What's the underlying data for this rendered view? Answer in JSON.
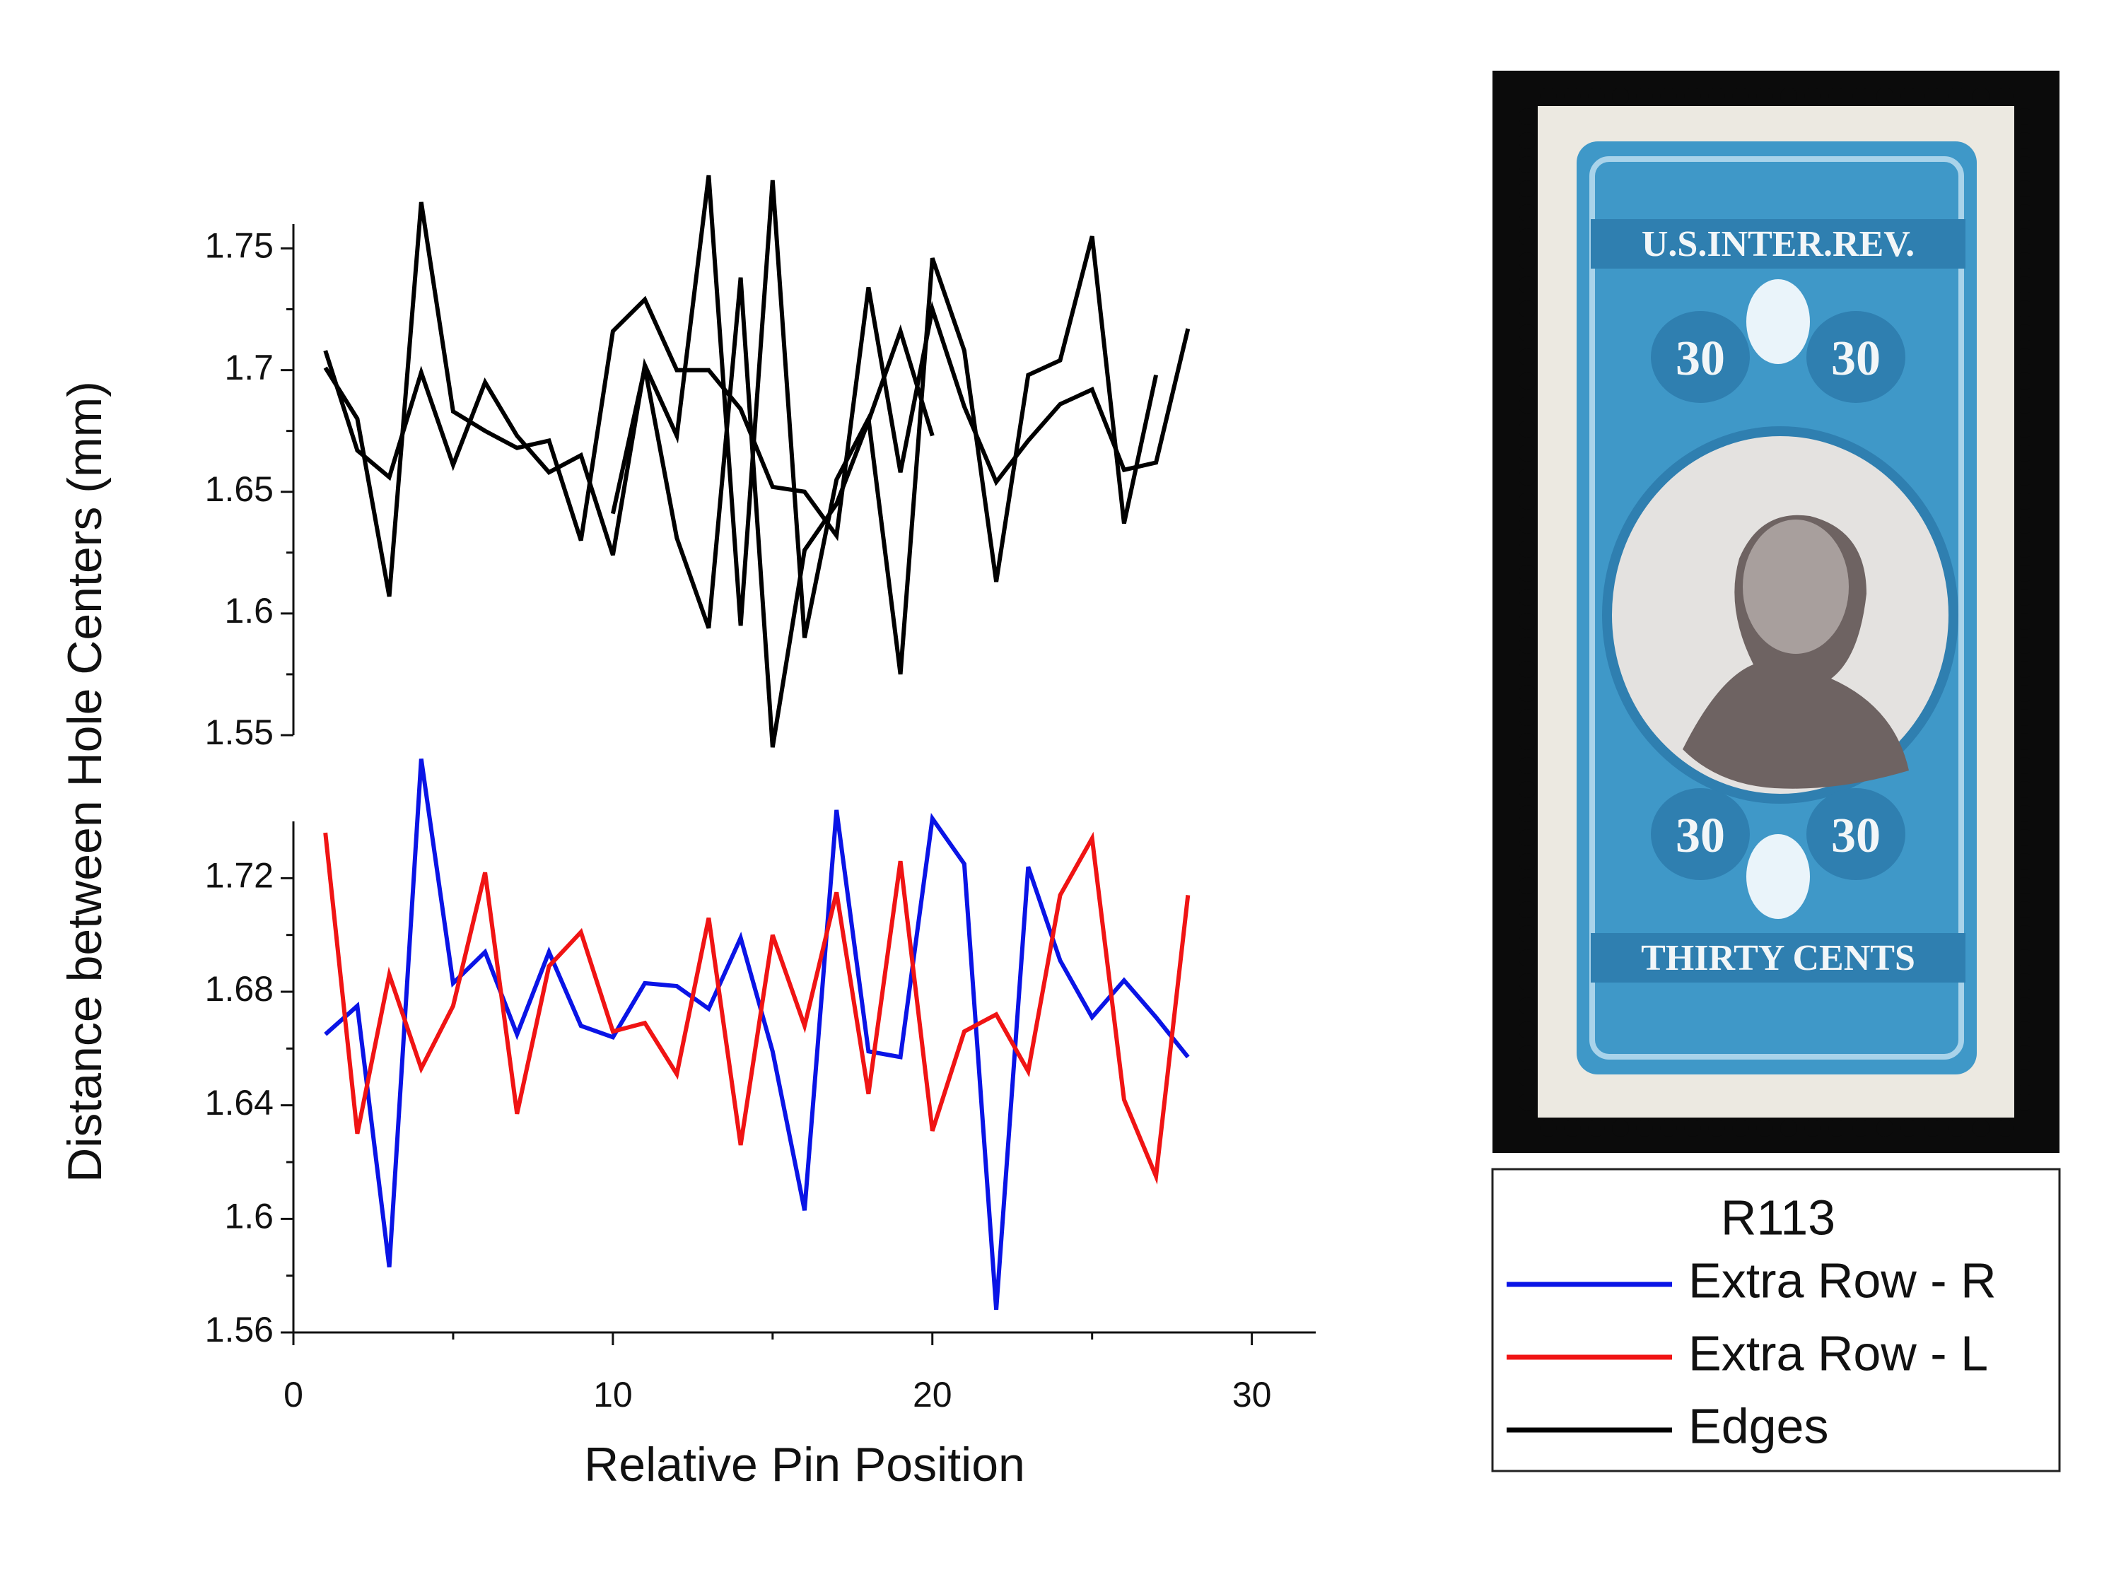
{
  "chart_data": [
    {
      "type": "line",
      "ylabel": "Distance between Hole Centers (mm)",
      "x": [
        1,
        2,
        3,
        4,
        5,
        6,
        7,
        8,
        9,
        10,
        11,
        12,
        13,
        14,
        15,
        16,
        17,
        18,
        19,
        20,
        21,
        22,
        23,
        24,
        25,
        26,
        27,
        28
      ],
      "xlim": [
        0,
        32
      ],
      "ylim": [
        1.55,
        1.76
      ],
      "yticks": [
        1.55,
        1.6,
        1.65,
        1.7,
        1.75
      ],
      "minor_yticks": [
        1.575,
        1.625,
        1.675,
        1.725
      ],
      "series": [
        {
          "name": "Edges",
          "color": "#000000",
          "values": [
            1.701,
            1.68,
            1.607,
            1.769,
            1.683,
            1.675,
            1.668,
            1.671,
            1.63,
            1.716,
            1.729,
            1.7,
            1.7,
            1.684,
            1.652,
            1.65,
            1.632,
            1.734,
            1.658,
            1.725,
            1.685,
            1.654,
            1.671,
            1.686,
            1.692,
            1.659,
            1.662,
            1.717
          ]
        },
        {
          "color": "#000000",
          "values": [
            1.708,
            1.667,
            1.656,
            1.699,
            1.661,
            1.695,
            1.673,
            1.658,
            1.665,
            1.624,
            1.702,
            1.673,
            1.78,
            1.595,
            1.778,
            1.59,
            1.655,
            1.68,
            1.575,
            1.746,
            1.708,
            1.613,
            1.698,
            1.704,
            1.755,
            1.637,
            1.698,
            null
          ]
        },
        {
          "color": "#000000",
          "values": [
            null,
            null,
            null,
            null,
            null,
            null,
            null,
            null,
            null,
            1.641,
            1.701,
            1.631,
            1.594,
            1.738,
            1.545,
            1.626,
            1.645,
            1.679,
            1.716,
            1.673,
            null,
            null,
            null,
            null,
            null,
            null,
            null,
            null
          ]
        }
      ]
    },
    {
      "type": "line",
      "xlabel": "Relative Pin Position",
      "x": [
        1,
        2,
        3,
        4,
        5,
        6,
        7,
        8,
        9,
        10,
        11,
        12,
        13,
        14,
        15,
        16,
        17,
        18,
        19,
        20,
        21,
        22,
        23,
        24,
        25,
        26,
        27,
        28
      ],
      "xlim": [
        0,
        32
      ],
      "xticks": [
        0,
        10,
        20,
        30
      ],
      "minor_xticks": [
        5,
        15,
        25
      ],
      "ylim": [
        1.56,
        1.74
      ],
      "yticks": [
        1.56,
        1.6,
        1.64,
        1.68,
        1.72
      ],
      "minor_yticks": [
        1.58,
        1.62,
        1.66,
        1.7
      ],
      "legend_title": "R113",
      "series": [
        {
          "name": "Extra Row - R",
          "color": "#0a14e6",
          "values": [
            1.665,
            1.675,
            1.583,
            1.762,
            1.683,
            1.694,
            1.665,
            1.694,
            1.668,
            1.664,
            1.683,
            1.682,
            1.674,
            1.699,
            1.659,
            1.603,
            1.744,
            1.659,
            1.657,
            1.741,
            1.725,
            1.568,
            1.724,
            1.691,
            1.671,
            1.684,
            1.671,
            1.657
          ]
        },
        {
          "name": "Extra Row - L",
          "color": "#f01414",
          "values": [
            1.736,
            1.63,
            1.686,
            1.653,
            1.675,
            1.722,
            1.637,
            1.689,
            1.701,
            1.666,
            1.669,
            1.651,
            1.706,
            1.626,
            1.7,
            1.668,
            1.715,
            1.644,
            1.726,
            1.631,
            1.666,
            1.672,
            1.652,
            1.714,
            1.734,
            1.642,
            1.615,
            1.714
          ]
        }
      ]
    }
  ],
  "stamp": {
    "top_text": "U.S.INTER.REV.",
    "denomination": "30",
    "bottom_text": "THIRTY CENTS"
  }
}
